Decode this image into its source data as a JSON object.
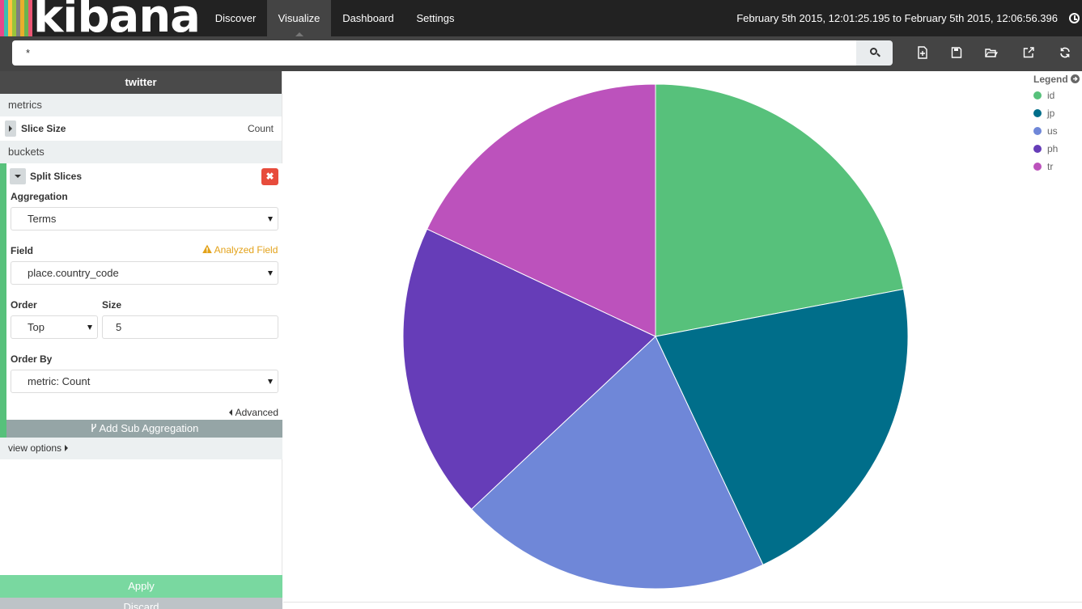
{
  "app": {
    "logo_text": "kibana",
    "logo_bar_colors": [
      "#e8488b",
      "#3ebeb0",
      "#ffc240",
      "#9ac43a",
      "#7e7e7e",
      "#e9ae2c",
      "#6ab44f",
      "#ea5573"
    ]
  },
  "nav": {
    "tabs": [
      {
        "label": "Discover"
      },
      {
        "label": "Visualize"
      },
      {
        "label": "Dashboard"
      },
      {
        "label": "Settings"
      }
    ],
    "active_tab": "Visualize",
    "timerange": "February 5th 2015, 12:01:25.195 to February 5th 2015, 12:06:56.396"
  },
  "search": {
    "query": "*",
    "icons": [
      "search-icon",
      "new-visualization-icon",
      "save-icon",
      "open-icon",
      "share-icon",
      "refresh-icon"
    ]
  },
  "sidebar": {
    "index_title": "twitter",
    "metrics_label": "metrics",
    "metric": {
      "title": "Slice Size",
      "value": "Count"
    },
    "buckets_label": "buckets",
    "split": {
      "title": "Split Slices",
      "aggregation_label": "Aggregation",
      "aggregation_value": "Terms",
      "field_label": "Field",
      "field_warning": "Analyzed Field",
      "field_value": "place.country_code",
      "order_label": "Order",
      "order_value": "Top",
      "size_label": "Size",
      "size_value": "5",
      "orderby_label": "Order By",
      "orderby_value": "metric: Count",
      "advanced_label": "Advanced"
    },
    "add_sub_label": "Add Sub Aggregation",
    "view_options_label": "view options",
    "apply_label": "Apply",
    "discard_label": "Discard",
    "accent_color": "#57c17b"
  },
  "chart_data": {
    "type": "pie",
    "labels": [
      "id",
      "jp",
      "us",
      "ph",
      "tr"
    ],
    "values": [
      22,
      21,
      20,
      19,
      18
    ],
    "colors": [
      "#57c17b",
      "#006e8a",
      "#6f87d8",
      "#663db8",
      "#bc52bc"
    ],
    "legend_title": "Legend",
    "legend_position": "top-right"
  }
}
